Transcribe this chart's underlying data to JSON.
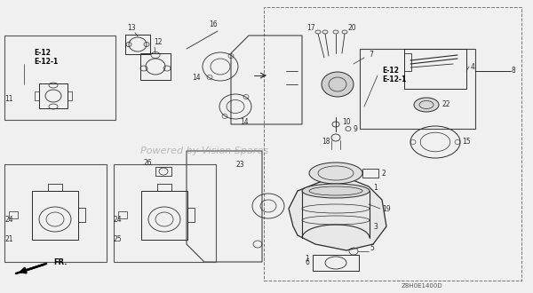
{
  "bg_color": "#f5f5f5",
  "line_color": "#2a2a2a",
  "watermark": "Powered by Vision Spares",
  "watermark_color": [
    0.6,
    0.6,
    0.6
  ],
  "diagram_code": "Z8H0E1400D",
  "fr_label": "FR.",
  "fig_width": 6.0,
  "fig_height": 3.3,
  "dpi": 100,
  "border_color": "#888888",
  "dashed_color": "#555555"
}
